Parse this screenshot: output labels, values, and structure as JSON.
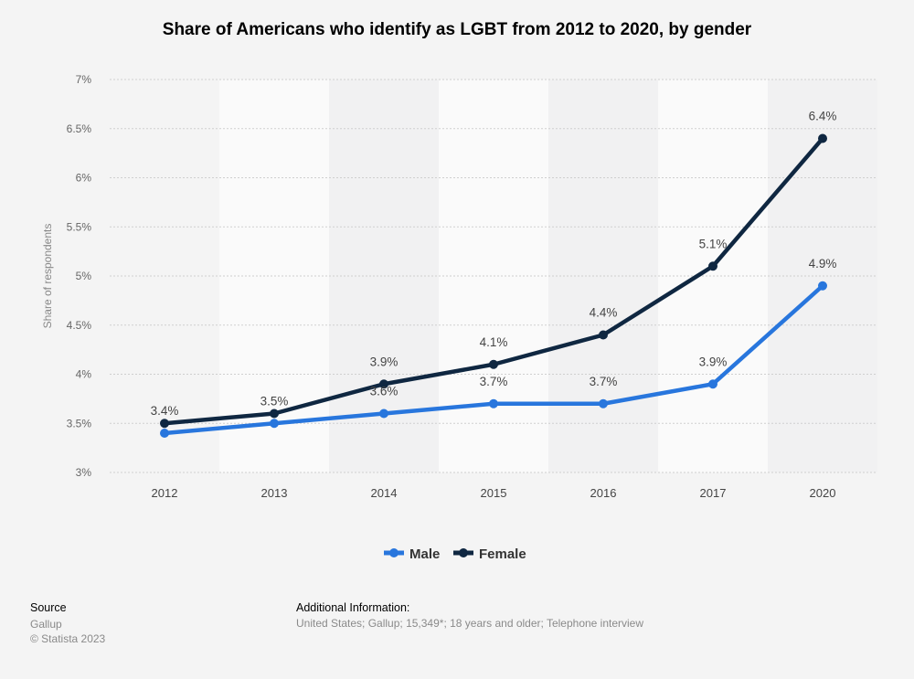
{
  "chart_data": {
    "type": "line",
    "title": "Share of Americans who identify as LGBT from 2012 to 2020, by gender",
    "xlabel": "",
    "ylabel": "Share of respondents",
    "categories": [
      "2012",
      "2013",
      "2014",
      "2015",
      "2016",
      "2017",
      "2020"
    ],
    "ylim": [
      3,
      7
    ],
    "yticks": [
      3,
      3.5,
      4,
      4.5,
      5,
      5.5,
      6,
      6.5,
      7
    ],
    "ytick_labels": [
      "3%",
      "3.5%",
      "4%",
      "4.5%",
      "5%",
      "5.5%",
      "6%",
      "6.5%",
      "7%"
    ],
    "grid": true,
    "legend_position": "bottom-center",
    "series": [
      {
        "name": "Male",
        "color": "#2876dd",
        "values": [
          3.4,
          3.5,
          3.6,
          3.7,
          3.7,
          3.9,
          4.9
        ],
        "labels": [
          "3.4%",
          "3.5%",
          "3.6%",
          "3.7%",
          "3.7%",
          "3.9%",
          "4.9%"
        ]
      },
      {
        "name": "Female",
        "color": "#0f2741",
        "values": [
          3.5,
          3.6,
          3.9,
          4.1,
          4.4,
          5.1,
          6.4
        ],
        "labels": [
          "",
          "",
          "3.9%",
          "4.1%",
          "4.4%",
          "5.1%",
          "6.4%"
        ]
      }
    ]
  },
  "footer": {
    "source_heading": "Source",
    "source_name": "Gallup",
    "copyright": "© Statista 2023",
    "additional_heading": "Additional Information:",
    "additional_text": "United States; Gallup; 15,349*; 18 years and older; Telephone interview"
  }
}
